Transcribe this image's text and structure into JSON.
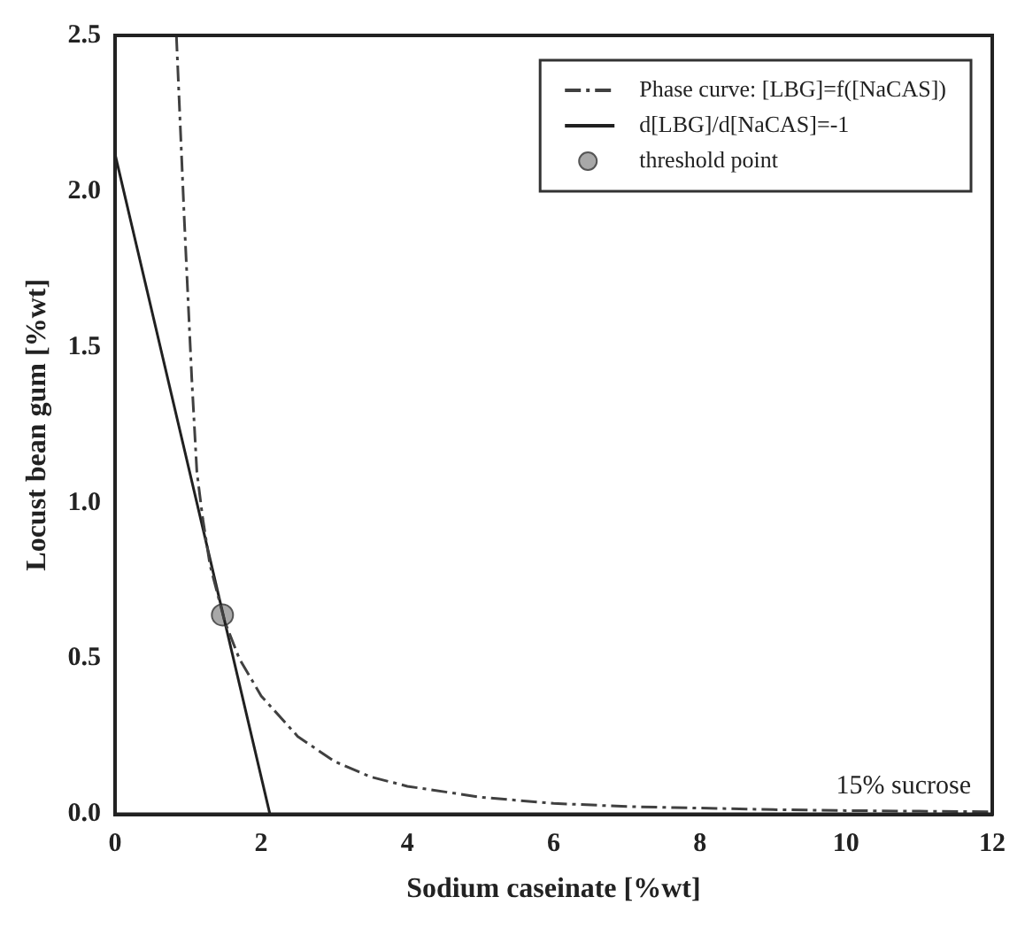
{
  "chart_data": {
    "type": "line",
    "xlabel": "Sodium caseinate [%wt]",
    "ylabel": "Locust bean gum [%wt]",
    "xlim": [
      0,
      12
    ],
    "xticks": [
      0,
      2,
      4,
      6,
      8,
      10,
      12
    ],
    "ylim": [
      0,
      2.5
    ],
    "yticks": [
      {
        "value": 0,
        "label": "0.0"
      },
      0.5,
      {
        "value": 1,
        "label": "1.0"
      },
      1.5,
      {
        "value": 2,
        "label": "2.0"
      },
      2.5
    ],
    "grid": false,
    "legend": "top right",
    "annotations": [
      "15% sucrose"
    ],
    "series": [
      {
        "name": "Phase curve: [LBG]=f([NaCAS])",
        "color": "#404040",
        "line_style": "dashed",
        "marker": "none",
        "x": [
          0.84,
          0.95,
          1.05,
          1.12,
          1.2,
          1.3,
          1.5,
          1.7,
          2,
          2.5,
          3,
          3.5,
          4,
          5,
          6,
          7,
          8,
          9,
          10,
          11,
          12
        ],
        "values": [
          2.5,
          1.9,
          1.4,
          1.1,
          0.95,
          0.8,
          0.62,
          0.5,
          0.38,
          0.25,
          0.17,
          0.12,
          0.09,
          0.055,
          0.035,
          0.025,
          0.02,
          0.015,
          0.012,
          0.01,
          0.008
        ]
      },
      {
        "name": "d[LBG]/d[NaCAS]=-1",
        "color": "#202020",
        "line_style": "solid",
        "marker": "none",
        "x": [
          0,
          2.12
        ],
        "values": [
          2.12,
          0
        ]
      },
      {
        "name": "threshold point",
        "color": "#a8a8a8",
        "type": "scatter",
        "marker": "circle",
        "x": [
          1.47
        ],
        "values": [
          0.64
        ]
      }
    ]
  }
}
